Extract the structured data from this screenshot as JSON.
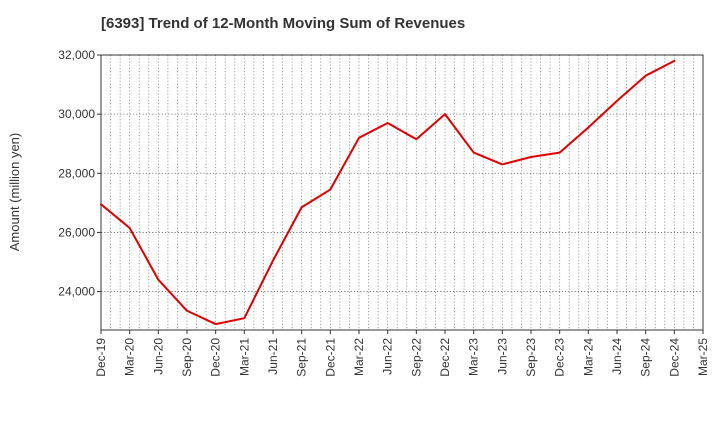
{
  "chart_data": {
    "type": "line",
    "title": "[6393]  Trend of 12-Month Moving Sum of Revenues",
    "xlabel": "",
    "ylabel": "Amount (million yen)",
    "ylim": [
      22700,
      32000
    ],
    "yticks": [
      24000,
      26000,
      28000,
      30000,
      32000
    ],
    "ytick_labels": [
      "24,000",
      "26,000",
      "28,000",
      "30,000",
      "32,000"
    ],
    "x_tick_labels": [
      "Dec-19",
      "Mar-20",
      "Jun-20",
      "Sep-20",
      "Dec-20",
      "Mar-21",
      "Jun-21",
      "Sep-21",
      "Dec-21",
      "Mar-22",
      "Jun-22",
      "Sep-22",
      "Dec-22",
      "Mar-23",
      "Jun-23",
      "Sep-23",
      "Dec-23",
      "Mar-24",
      "Jun-24",
      "Sep-24",
      "Dec-24",
      "Mar-25"
    ],
    "grid": true,
    "series": [
      {
        "color": "#e00000",
        "x": [
          "Dec-19",
          "Mar-20",
          "Jun-20",
          "Sep-20",
          "Dec-20",
          "Mar-21",
          "Jun-21",
          "Sep-21",
          "Dec-21",
          "Mar-22",
          "Jun-22",
          "Sep-22",
          "Dec-22",
          "Mar-23",
          "Jun-23",
          "Sep-23",
          "Dec-23",
          "Mar-24",
          "Jun-24",
          "Sep-24",
          "Dec-24"
        ],
        "values": [
          26950,
          26150,
          24400,
          23350,
          22900,
          23100,
          25050,
          26850,
          27450,
          29200,
          29700,
          29150,
          30000,
          28700,
          28300,
          28550,
          28700,
          29550,
          30450,
          31300,
          31800
        ]
      }
    ]
  }
}
